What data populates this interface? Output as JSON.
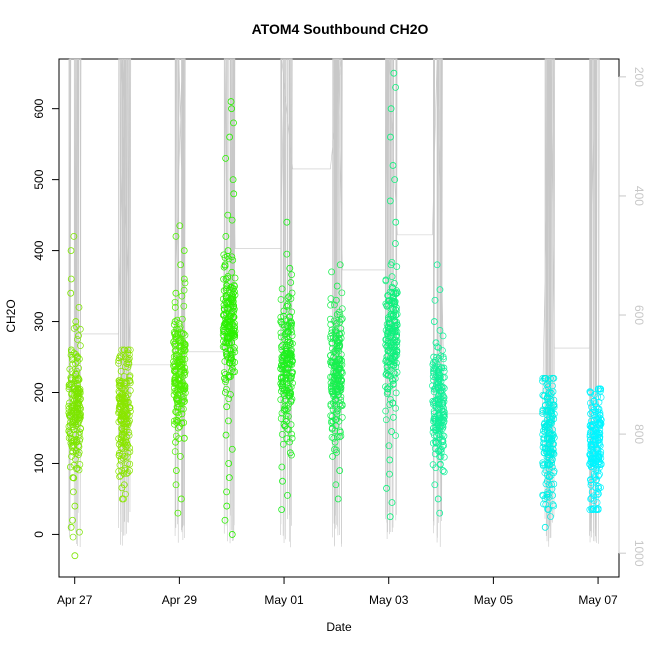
{
  "chart_data": {
    "type": "scatter",
    "title": "ATOM4 Southbound CH2O",
    "xlabel": "Date",
    "ylabel": "CH2O",
    "x_axis": {
      "ticks": [
        "Apr 27",
        "Apr 29",
        "May 01",
        "May 03",
        "May 05",
        "May 07"
      ],
      "tick_positions_days": [
        0,
        2,
        4,
        6,
        8,
        10
      ],
      "range_days": [
        -0.3,
        10.4
      ]
    },
    "y_axis": {
      "ticks": [
        0,
        100,
        200,
        300,
        400,
        500,
        600
      ],
      "range": [
        -60,
        670
      ]
    },
    "right_axis": {
      "label": "",
      "ticks": [
        200,
        400,
        600,
        800,
        1000
      ],
      "range": [
        1040,
        170
      ],
      "note": "inverted pressure-like altitude axis (grey trace)"
    },
    "series": [
      {
        "day": 0.0,
        "values": [
          10,
          40,
          60,
          80,
          95,
          110,
          125,
          140,
          155,
          170,
          185,
          200,
          220,
          240,
          260,
          280,
          300,
          320,
          340,
          360,
          400,
          420,
          -30,
          20
        ],
        "color": "#7de600"
      },
      {
        "day": 0.95,
        "values": [
          50,
          70,
          90,
          110,
          130,
          150,
          170,
          190,
          210,
          230,
          250,
          260
        ],
        "color": "#8ae600"
      },
      {
        "day": 2.0,
        "values": [
          30,
          50,
          70,
          90,
          110,
          130,
          150,
          170,
          190,
          210,
          230,
          250,
          270,
          300,
          320,
          340,
          360,
          380,
          400,
          420,
          435
        ],
        "color": "#4ef000"
      },
      {
        "day": 2.95,
        "values": [
          0,
          20,
          40,
          60,
          80,
          100,
          120,
          140,
          160,
          180,
          200,
          220,
          240,
          260,
          280,
          300,
          320,
          340,
          360,
          380,
          400,
          420,
          450,
          480,
          500,
          530,
          560,
          580,
          600,
          610
        ],
        "color": "#2bf000"
      },
      {
        "day": 4.05,
        "values": [
          35,
          55,
          75,
          95,
          115,
          135,
          155,
          175,
          195,
          215,
          235,
          255,
          275,
          295,
          315,
          335,
          355,
          375,
          395,
          440
        ],
        "color": "#1ff01f"
      },
      {
        "day": 5.0,
        "values": [
          50,
          70,
          90,
          110,
          130,
          150,
          170,
          190,
          210,
          230,
          250,
          270,
          290,
          310,
          330,
          350,
          370,
          380
        ],
        "color": "#17f04e"
      },
      {
        "day": 6.05,
        "values": [
          25,
          45,
          65,
          85,
          105,
          125,
          145,
          165,
          185,
          205,
          225,
          250,
          280,
          310,
          340,
          380,
          410,
          440,
          470,
          500,
          520,
          560,
          600,
          630,
          650
        ],
        "color": "#10f07d"
      },
      {
        "day": 6.95,
        "values": [
          30,
          50,
          70,
          90,
          110,
          130,
          150,
          170,
          190,
          210,
          230,
          250,
          270,
          300,
          330,
          345,
          380
        ],
        "color": "#12f099"
      },
      {
        "day": 9.05,
        "values": [
          10,
          35,
          55,
          75,
          95,
          115,
          135,
          155,
          175,
          190,
          200,
          220
        ],
        "color": "#00f0e6"
      },
      {
        "day": 9.95,
        "values": [
          35,
          50,
          65,
          80,
          95,
          110,
          125,
          140,
          155,
          170,
          180,
          205
        ],
        "color": "#00f5ff"
      }
    ],
    "grid": false,
    "legend": "none"
  }
}
